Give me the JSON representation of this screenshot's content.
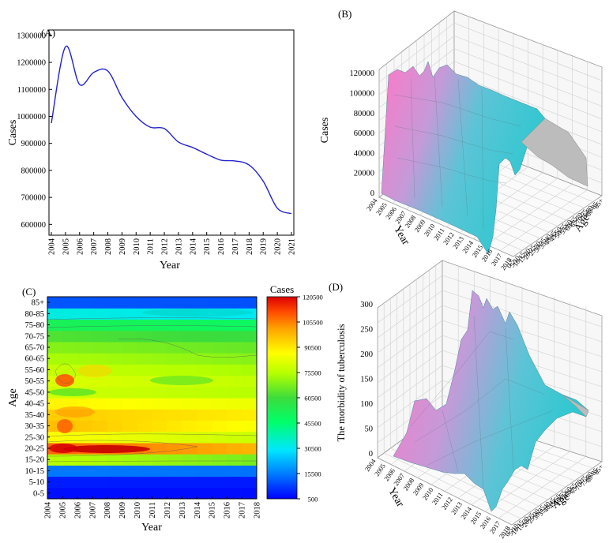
{
  "panels": {
    "a": {
      "label": "(A)"
    },
    "b": {
      "label": "(B)"
    },
    "c": {
      "label": "(C)"
    },
    "d": {
      "label": "(D)"
    }
  },
  "chart_data": [
    {
      "id": "A",
      "type": "line",
      "xlabel": "Year",
      "ylabel": "Cases",
      "ylim": [
        560000,
        1320000
      ],
      "y_ticks": [
        600000,
        700000,
        800000,
        900000,
        1000000,
        1100000,
        1200000,
        1300000
      ],
      "y_tick_labels": [
        "600000",
        "700000",
        "800000",
        "900000",
        "1000000",
        "1100000",
        "1200000",
        "1300000"
      ],
      "x": [
        "2004",
        "2005",
        "2006",
        "2007",
        "2008",
        "2009",
        "2010",
        "2011",
        "2012",
        "2013",
        "2014",
        "2015",
        "2016",
        "2017",
        "2018",
        "2019",
        "2020",
        "2021"
      ],
      "values": [
        975000,
        1258000,
        1118000,
        1163000,
        1168000,
        1070000,
        1000000,
        960000,
        955000,
        905000,
        885000,
        860000,
        838000,
        835000,
        820000,
        760000,
        660000,
        640000
      ],
      "color": "#2222cc"
    },
    {
      "id": "B",
      "type": "surface3d",
      "zlabel": "Cases",
      "xlabel": "Year",
      "ylabel": "Age",
      "z_ticks": [
        "0",
        "20000",
        "40000",
        "60000",
        "80000",
        "100000",
        "120000"
      ],
      "year_ticks": [
        "2004",
        "2005",
        "2006",
        "2007",
        "2008",
        "2009",
        "2010",
        "2011",
        "2012",
        "2013",
        "2014",
        "2015",
        "2016",
        "2017",
        "2018"
      ],
      "age_ticks": [
        "0-5",
        "5-10",
        "10-15",
        "15-20",
        "20-25",
        "25-30",
        "30-35",
        "35-40",
        "40-45",
        "45-50",
        "50-55",
        "55-60",
        "60-65",
        "65-70",
        "70-75",
        "75-80",
        "80-85",
        "85+"
      ],
      "colors": {
        "low": "#2ec8d0",
        "high": "#ff78c8",
        "mid": "#c0a0d8",
        "back": "#b8b8b8"
      }
    },
    {
      "id": "C",
      "type": "heatmap",
      "xlabel": "Year",
      "ylabel": "Age",
      "legend_title": "Cases",
      "x": [
        "2004",
        "2005",
        "2006",
        "2007",
        "2008",
        "2009",
        "2010",
        "2011",
        "2012",
        "2013",
        "2014",
        "2015",
        "2016",
        "2017",
        "2018"
      ],
      "y": [
        "0-5",
        "5-10",
        "10-15",
        "15-20",
        "20-25",
        "25-30",
        "30-35",
        "35-40",
        "40-45",
        "45-50",
        "50-55",
        "55-60",
        "60-65",
        "65-70",
        "70-75",
        "75-80",
        "80-85",
        "85+"
      ],
      "colorbar_ticks": [
        "500",
        "15500",
        "30500",
        "45500",
        "60500",
        "75500",
        "90500",
        "105500",
        "120500"
      ],
      "colorbar_range": [
        500,
        120500
      ],
      "row_means": [
        2000,
        3500,
        14000,
        68000,
        103000,
        80000,
        90000,
        88000,
        82000,
        72000,
        74000,
        70000,
        66000,
        62000,
        56000,
        46000,
        30000,
        10000
      ],
      "colors": [
        "#0000ff",
        "#0078ff",
        "#00e6ff",
        "#00ff6a",
        "#3cdc3c",
        "#b4ff00",
        "#ffff00",
        "#ffa500",
        "#ff4600",
        "#dc0000"
      ]
    },
    {
      "id": "D",
      "type": "surface3d",
      "zlabel": "The morbidity of  tuberculosis",
      "xlabel": "Year",
      "ylabel": "Age",
      "z_ticks": [
        "0",
        "50",
        "100",
        "150",
        "200",
        "250",
        "300"
      ],
      "year_ticks": [
        "2004",
        "2005",
        "2006",
        "2007",
        "2008",
        "2009",
        "2010",
        "2011",
        "2012",
        "2013",
        "2014",
        "2015",
        "2016",
        "2017",
        "2018"
      ],
      "age_ticks": [
        "0-5",
        "5-10",
        "10-15",
        "15-20",
        "20-25",
        "25-30",
        "30-35",
        "35-40",
        "40-45",
        "45-50",
        "50-55",
        "55-60",
        "60-65",
        "65-70",
        "70-75",
        "75-80",
        "80-85",
        "85+"
      ],
      "colors": {
        "low": "#2ec8d0",
        "high": "#ff78c8",
        "mid": "#c0a0d8",
        "back": "#b8b8b8"
      }
    }
  ]
}
